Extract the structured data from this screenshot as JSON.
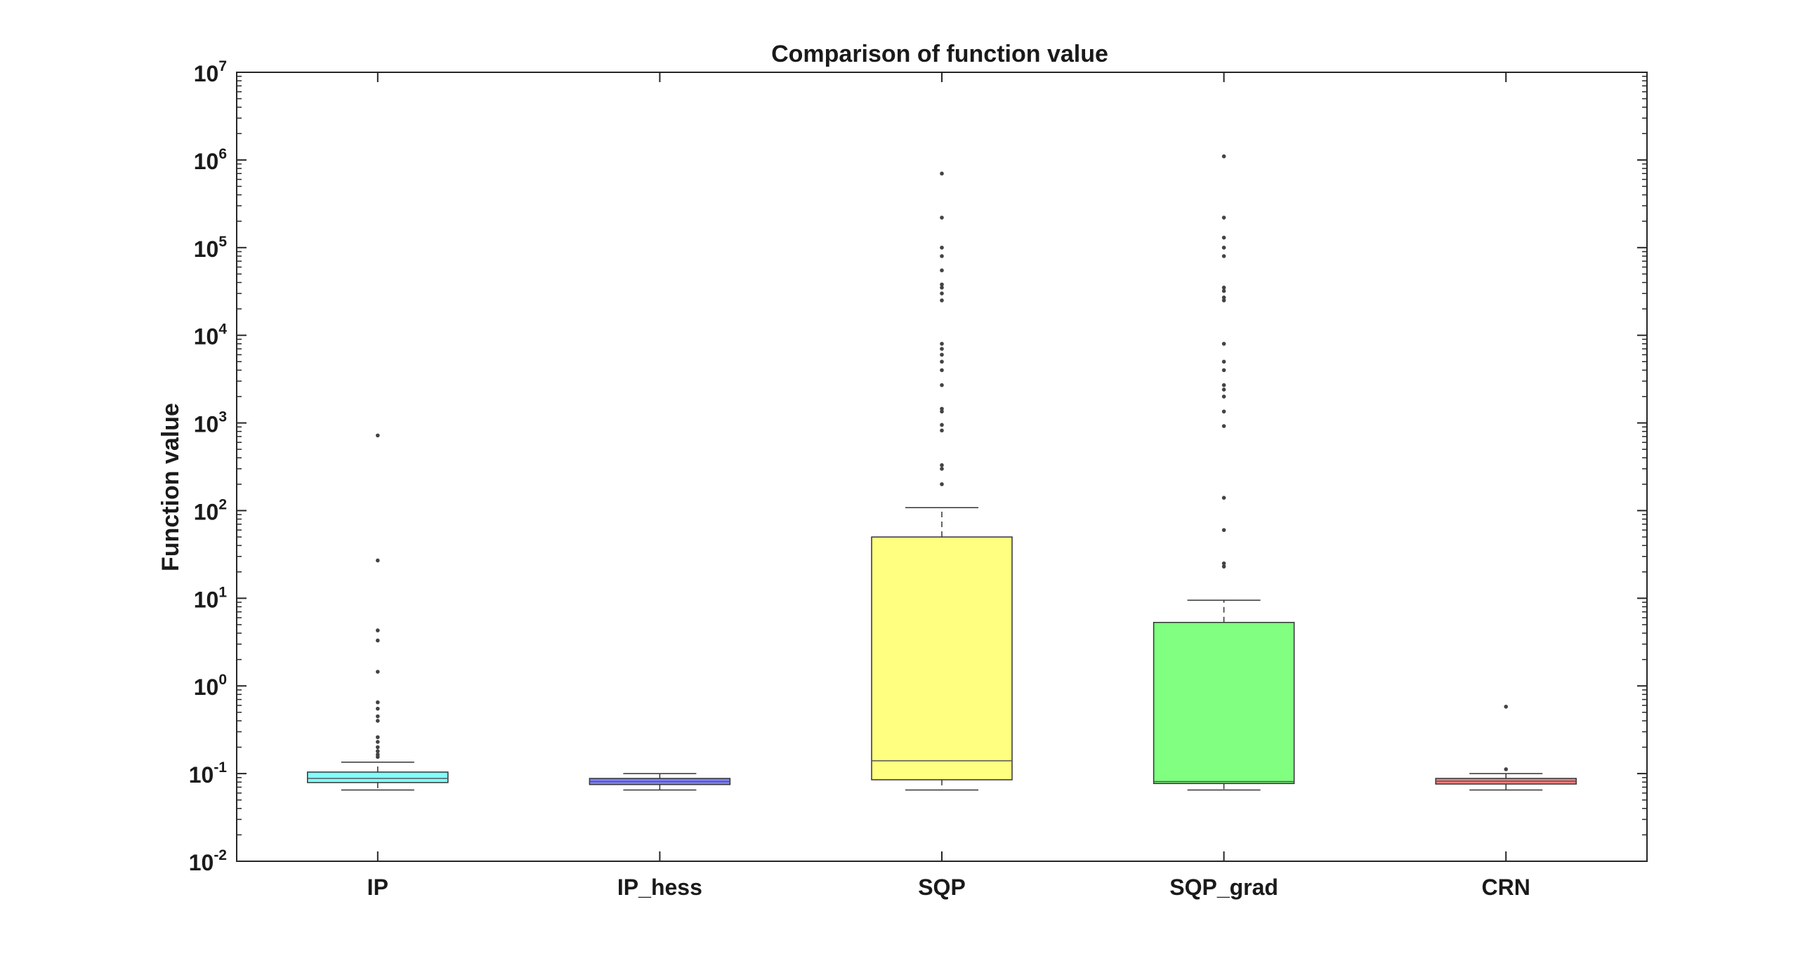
{
  "chart_data": {
    "type": "boxplot",
    "title": "Comparison of function value",
    "xlabel": "",
    "ylabel": "Function value",
    "yscale": "log",
    "ylim": [
      0.01,
      10000000
    ],
    "ytick_labels": [
      {
        "base": "10",
        "exp": "-2"
      },
      {
        "base": "10",
        "exp": "-1"
      },
      {
        "base": "10",
        "exp": "0"
      },
      {
        "base": "10",
        "exp": "1"
      },
      {
        "base": "10",
        "exp": "2"
      },
      {
        "base": "10",
        "exp": "3"
      },
      {
        "base": "10",
        "exp": "4"
      },
      {
        "base": "10",
        "exp": "5"
      },
      {
        "base": "10",
        "exp": "6"
      },
      {
        "base": "10",
        "exp": "7"
      }
    ],
    "grid": false,
    "categories": [
      "IP",
      "IP_hess",
      "SQP",
      "SQP_grad",
      "CRN"
    ],
    "boxes": [
      {
        "name": "IP",
        "color": "#80ffff",
        "whisker_low": 0.065,
        "q1": 0.079,
        "median": 0.088,
        "q3": 0.104,
        "whisker_high": 0.135,
        "outliers": [
          720,
          27,
          4.3,
          3.3,
          1.45,
          0.65,
          0.55,
          0.45,
          0.4,
          0.26,
          0.23,
          0.2,
          0.18,
          0.165,
          0.155
        ]
      },
      {
        "name": "IP_hess",
        "color": "#8080ff",
        "whisker_low": 0.065,
        "q1": 0.075,
        "median": 0.081,
        "q3": 0.088,
        "whisker_high": 0.1,
        "outliers": []
      },
      {
        "name": "SQP",
        "color": "#ffff80",
        "whisker_low": 0.065,
        "q1": 0.085,
        "median": 0.14,
        "q3": 50,
        "whisker_high": 108,
        "outliers": [
          700000,
          220000,
          100000,
          80000,
          55000,
          38000,
          35000,
          30000,
          25000,
          8000,
          7000,
          6000,
          5000,
          4000,
          2700,
          1450,
          1350,
          950,
          820,
          330,
          300,
          200
        ]
      },
      {
        "name": "SQP_grad",
        "color": "#80ff80",
        "whisker_low": 0.065,
        "q1": 0.077,
        "median": 0.081,
        "q3": 5.3,
        "whisker_high": 9.5,
        "outliers": [
          1100000,
          220000,
          130000,
          100000,
          80000,
          35000,
          32000,
          27000,
          25000,
          8000,
          5000,
          4000,
          2700,
          2400,
          2000,
          1350,
          920,
          140,
          60,
          25,
          23
        ]
      },
      {
        "name": "CRN",
        "color": "#ff8080",
        "whisker_low": 0.065,
        "q1": 0.076,
        "median": 0.082,
        "q3": 0.088,
        "whisker_high": 0.1,
        "outliers": [
          0.58,
          0.112
        ]
      }
    ]
  }
}
